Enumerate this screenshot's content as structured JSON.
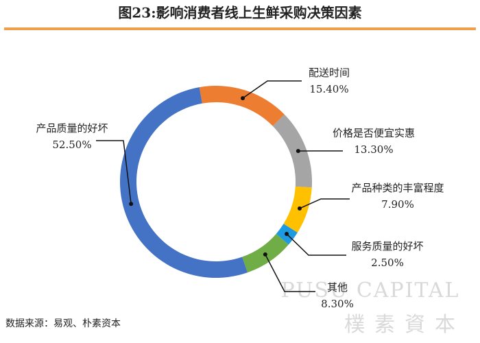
{
  "chart_data": {
    "type": "donut",
    "title": "图23:影响消费者线上生鲜采购决策因素",
    "categories": [
      "配送时间",
      "价格是否便宜实惠",
      "产品种类的丰富程度",
      "服务质量的好坏",
      "其他",
      "产品质量的好坏"
    ],
    "values": [
      15.4,
      13.3,
      7.9,
      2.5,
      8.3,
      52.5
    ],
    "value_labels": [
      "15.40%",
      "13.30%",
      "7.90%",
      "2.50%",
      "8.30%",
      "52.50%"
    ],
    "colors": [
      "#ed7d31",
      "#a5a5a5",
      "#ffc000",
      "#1e9be0",
      "#70ad47",
      "#4472c4"
    ],
    "source": "数据来源：易观、朴素资本",
    "watermark": [
      "PUSU CAPITAL",
      "樸素資本"
    ]
  }
}
